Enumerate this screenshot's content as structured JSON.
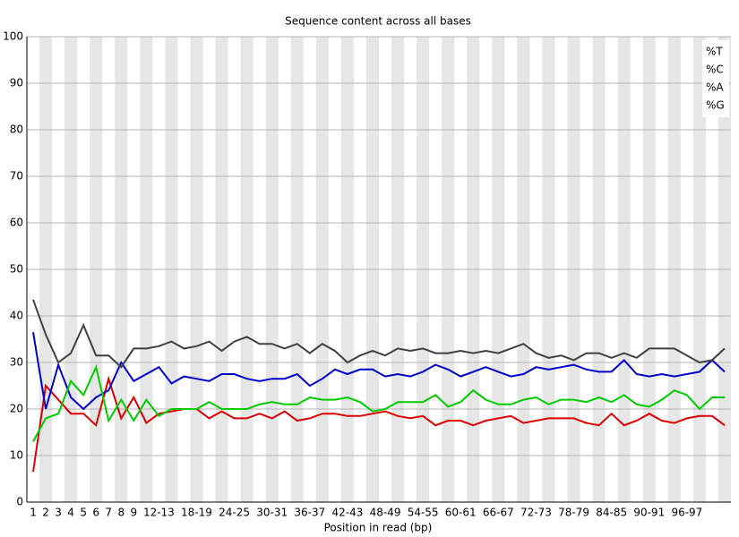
{
  "chart_data": {
    "type": "line",
    "title": "Sequence content across all bases",
    "x_label": "Position in read (bp)",
    "categories": [
      "1",
      "2",
      "3",
      "4",
      "5",
      "6",
      "7",
      "8",
      "9",
      null,
      "12-13",
      null,
      null,
      "18-19",
      null,
      null,
      "24-25",
      null,
      null,
      "30-31",
      null,
      null,
      "36-37",
      null,
      null,
      "42-43",
      null,
      null,
      "48-49",
      null,
      null,
      "54-55",
      null,
      null,
      "60-61",
      null,
      null,
      "66-67",
      null,
      null,
      "72-73",
      null,
      null,
      "78-79",
      null,
      null,
      "84-85",
      null,
      null,
      "90-91",
      null,
      null,
      "96-97",
      null,
      null,
      null
    ],
    "series": [
      {
        "name": "%T",
        "color": "#dd0000",
        "values": [
          6.5,
          25,
          22,
          19,
          19,
          16.5,
          26.5,
          18,
          22.5,
          17,
          19,
          19.5,
          20,
          20,
          18,
          19.5,
          18,
          18,
          19,
          18,
          19.5,
          17.5,
          18,
          19,
          19,
          18.5,
          18.5,
          19,
          19.5,
          18.5,
          18,
          18.5,
          16.5,
          17.5,
          17.5,
          16.5,
          17.5,
          18,
          18.5,
          17,
          17.5,
          18,
          18,
          18,
          17,
          16.5,
          19,
          16.5,
          17.5,
          19,
          17.5,
          17,
          18,
          18.5,
          18.5,
          16.5
        ]
      },
      {
        "name": "%C",
        "color": "#0000cc",
        "values": [
          36.5,
          20,
          29.5,
          22.5,
          20,
          22.5,
          24,
          30,
          26,
          27.5,
          29,
          25.5,
          27,
          26.5,
          26,
          27.5,
          27.5,
          26.5,
          26,
          26.5,
          26.5,
          27.5,
          25,
          26.5,
          28.5,
          27.5,
          28.5,
          28.5,
          27,
          27.5,
          27,
          28,
          29.5,
          28.5,
          27,
          28,
          29,
          28,
          27,
          27.5,
          29,
          28.5,
          29,
          29.5,
          28.5,
          28,
          28,
          30.5,
          27.5,
          27,
          27.5,
          27,
          27.5,
          28,
          30.5,
          28
        ]
      },
      {
        "name": "%A",
        "color": "#00cc00",
        "values": [
          13,
          18,
          19,
          26,
          23,
          29,
          17.5,
          22,
          17.5,
          22,
          18.5,
          20,
          20,
          20,
          21.5,
          20,
          20,
          20,
          21,
          21.5,
          21,
          21,
          22.5,
          22,
          22,
          22.5,
          21.5,
          19.5,
          20,
          21.5,
          21.5,
          21.5,
          23,
          20.5,
          21.5,
          24,
          22,
          21,
          21,
          22,
          22.5,
          21,
          22,
          22,
          21.5,
          22.5,
          21.5,
          23,
          21,
          20.5,
          22,
          24,
          23,
          20,
          22.5,
          22.5
        ]
      },
      {
        "name": "%G",
        "color": "#404040",
        "values": [
          43.5,
          36,
          30,
          32,
          38,
          31.5,
          31.5,
          29,
          33,
          33,
          33.5,
          34.5,
          33,
          33.5,
          34.5,
          32.5,
          34.5,
          35.5,
          34,
          34,
          33,
          34,
          32,
          34,
          32.5,
          30,
          31.5,
          32.5,
          31.5,
          33,
          32.5,
          33,
          32,
          32,
          32.5,
          32,
          32.5,
          32,
          33,
          34,
          32,
          31,
          31.5,
          30.5,
          32,
          32,
          31,
          32,
          31,
          33,
          33,
          33,
          31.5,
          30,
          30.5,
          33
        ]
      }
    ],
    "ylim": [
      0,
      100
    ],
    "yticks": [
      0,
      10,
      20,
      30,
      40,
      50,
      60,
      70,
      80,
      90,
      100
    ],
    "grid": true,
    "legend": "top-right"
  }
}
